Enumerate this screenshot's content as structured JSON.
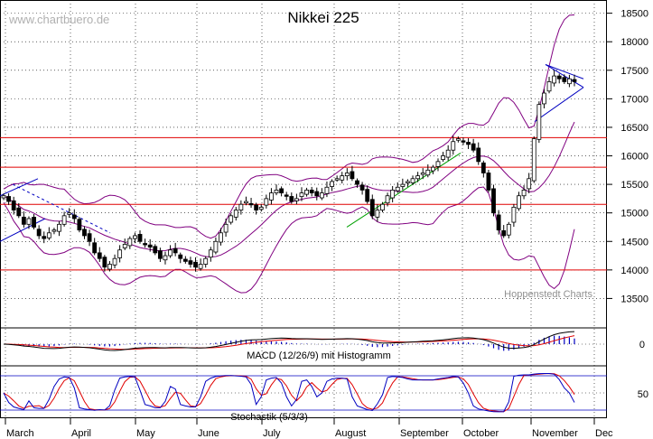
{
  "chart_data": [
    {
      "type": "candlestick",
      "title": "Nikkei 225",
      "watermark": "www.chartbuero.de",
      "source_note": "Hoppenstedt Charts",
      "ylim": [
        13000,
        18700
      ],
      "y_ticks": [
        13500,
        14000,
        14500,
        15000,
        15500,
        16000,
        16500,
        17000,
        17500,
        18000,
        18500
      ],
      "y_tick_labels": [
        "13500",
        "14000",
        "14500",
        "15000",
        "15500",
        "16000",
        "16500",
        "17000",
        "17500",
        "18000",
        "18500"
      ],
      "x_months": [
        "March",
        "April",
        "May",
        "June",
        "July",
        "August",
        "September",
        "October",
        "November",
        "Dec"
      ],
      "horizontal_levels": [
        14000,
        15150,
        15800,
        16320
      ],
      "colors": {
        "up_candle": "#ffffff",
        "down_candle": "#000000",
        "bollinger": "#800080",
        "resistance": "#e00000",
        "trend_green": "#00a000",
        "trend_blue": "#0000c0",
        "grid": "#000000"
      },
      "close_series": [
        15300,
        15200,
        15050,
        14950,
        14800,
        14900,
        14750,
        14600,
        14550,
        14650,
        14700,
        14800,
        14950,
        15000,
        14900,
        14700,
        14600,
        14500,
        14300,
        14200,
        14050,
        14100,
        14200,
        14350,
        14450,
        14550,
        14600,
        14500,
        14450,
        14400,
        14300,
        14200,
        14250,
        14350,
        14300,
        14200,
        14150,
        14100,
        14050,
        14100,
        14200,
        14350,
        14500,
        14650,
        14800,
        14950,
        15050,
        15150,
        15200,
        15150,
        15050,
        15100,
        15250,
        15350,
        15400,
        15350,
        15300,
        15200,
        15250,
        15350,
        15400,
        15350,
        15300,
        15350,
        15450,
        15550,
        15600,
        15650,
        15700,
        15600,
        15500,
        15400,
        15200,
        14950,
        15050,
        15150,
        15300,
        15400,
        15450,
        15500,
        15550,
        15600,
        15650,
        15700,
        15750,
        15800,
        15900,
        16000,
        16100,
        16250,
        16300,
        16250,
        16200,
        16100,
        15900,
        15700,
        15400,
        15000,
        14700,
        14600,
        14800,
        15100,
        15300,
        15400,
        15600,
        16300,
        16900,
        17100,
        17300,
        17400,
        17350,
        17300,
        17350,
        17300
      ],
      "bollinger_upper_label": "",
      "indicators": [
        {
          "name": "MACD (12/26/9) mit Histogramm",
          "zero_label": "0"
        },
        {
          "name": "Stochastik (5/3/3)",
          "mid_label": "50"
        }
      ]
    }
  ]
}
